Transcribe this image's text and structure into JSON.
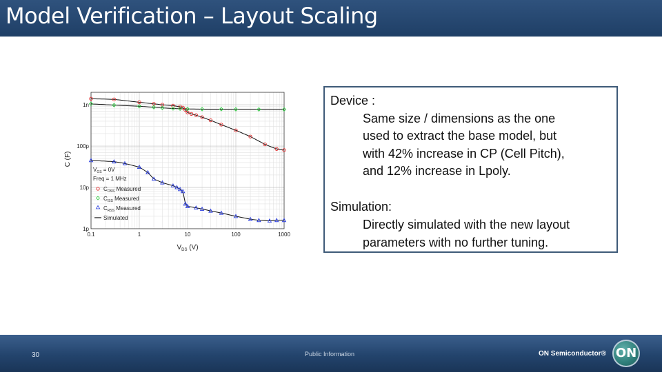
{
  "slide": {
    "title": "Model Verification – Layout Scaling",
    "page_number": "30",
    "footer_label": "Public Information",
    "brand": "ON Semiconductor®",
    "logo_text": "ON"
  },
  "textbox": {
    "device_heading": "Device :",
    "device_lines": [
      "Same size / dimensions as the one",
      "used to extract the base model, but",
      "with 42% increase in CP (Cell Pitch),",
      "and 12% increase in Lpoly."
    ],
    "simulation_heading": "Simulation:",
    "simulation_lines": [
      "Directly simulated with the new layout",
      "parameters with no further tuning."
    ]
  },
  "chart_data": {
    "type": "scatter",
    "x_scale": "log",
    "y_scale": "log",
    "xlim": [
      0.1,
      1000
    ],
    "ylim": [
      1e-12,
      2e-09
    ],
    "x_ticks": [
      {
        "value": 0.1,
        "label": "0.1"
      },
      {
        "value": 1,
        "label": "1"
      },
      {
        "value": 10,
        "label": "10"
      },
      {
        "value": 100,
        "label": "100"
      },
      {
        "value": 1000,
        "label": "1000"
      }
    ],
    "y_ticks": [
      {
        "value": 1e-09,
        "label": "1n"
      },
      {
        "value": 1e-10,
        "label": "100p"
      },
      {
        "value": 1e-11,
        "label": "10p"
      },
      {
        "value": 1e-12,
        "label": "1p"
      }
    ],
    "xlabel": "V_DS (V)",
    "ylabel": "C (F)",
    "conditions": [
      "V_GS = 0V",
      "Freq = 1 MHz"
    ],
    "legend_position": "bottom-left",
    "series": [
      {
        "name": "C_OSS Measured",
        "marker": "circle",
        "color": "#e32b2b",
        "x": [
          0.1,
          0.3,
          1,
          2,
          3,
          5,
          7,
          8,
          9,
          10,
          12,
          15,
          20,
          30,
          50,
          100,
          200,
          400,
          700,
          1000
        ],
        "y": [
          1.4e-09,
          1.35e-09,
          1.15e-09,
          1.05e-09,
          1e-09,
          9.5e-10,
          9e-10,
          8.5e-10,
          7.5e-10,
          6.5e-10,
          6e-10,
          5.6e-10,
          5e-10,
          4.2e-10,
          3.3e-10,
          2.4e-10,
          1.7e-10,
          1.1e-10,
          8.5e-11,
          8e-11
        ]
      },
      {
        "name": "C_ISS Measured",
        "marker": "diamond",
        "color": "#2ecc40",
        "x": [
          0.1,
          0.3,
          1,
          2,
          3,
          5,
          7,
          10,
          20,
          50,
          100,
          300,
          1000
        ],
        "y": [
          1.05e-09,
          9.8e-10,
          9.2e-10,
          8.7e-10,
          8.4e-10,
          8.1e-10,
          8e-10,
          7.9e-10,
          7.8e-10,
          7.8e-10,
          7.75e-10,
          7.7e-10,
          7.7e-10
        ]
      },
      {
        "name": "C_RSS Measured",
        "marker": "triangle",
        "color": "#2a3de0",
        "x": [
          0.1,
          0.3,
          0.5,
          1,
          1.5,
          2,
          3,
          5,
          6,
          7,
          8,
          9,
          10,
          15,
          20,
          30,
          50,
          100,
          200,
          300,
          500,
          700,
          1000
        ],
        "y": [
          4.5e-11,
          4.2e-11,
          3.8e-11,
          3.1e-11,
          2.3e-11,
          1.6e-11,
          1.3e-11,
          1.1e-11,
          1e-11,
          9e-12,
          8e-12,
          4e-12,
          3.5e-12,
          3.2e-12,
          3e-12,
          2.7e-12,
          2.4e-12,
          2e-12,
          1.7e-12,
          1.6e-12,
          1.55e-12,
          1.6e-12,
          1.6e-12
        ]
      }
    ]
  }
}
